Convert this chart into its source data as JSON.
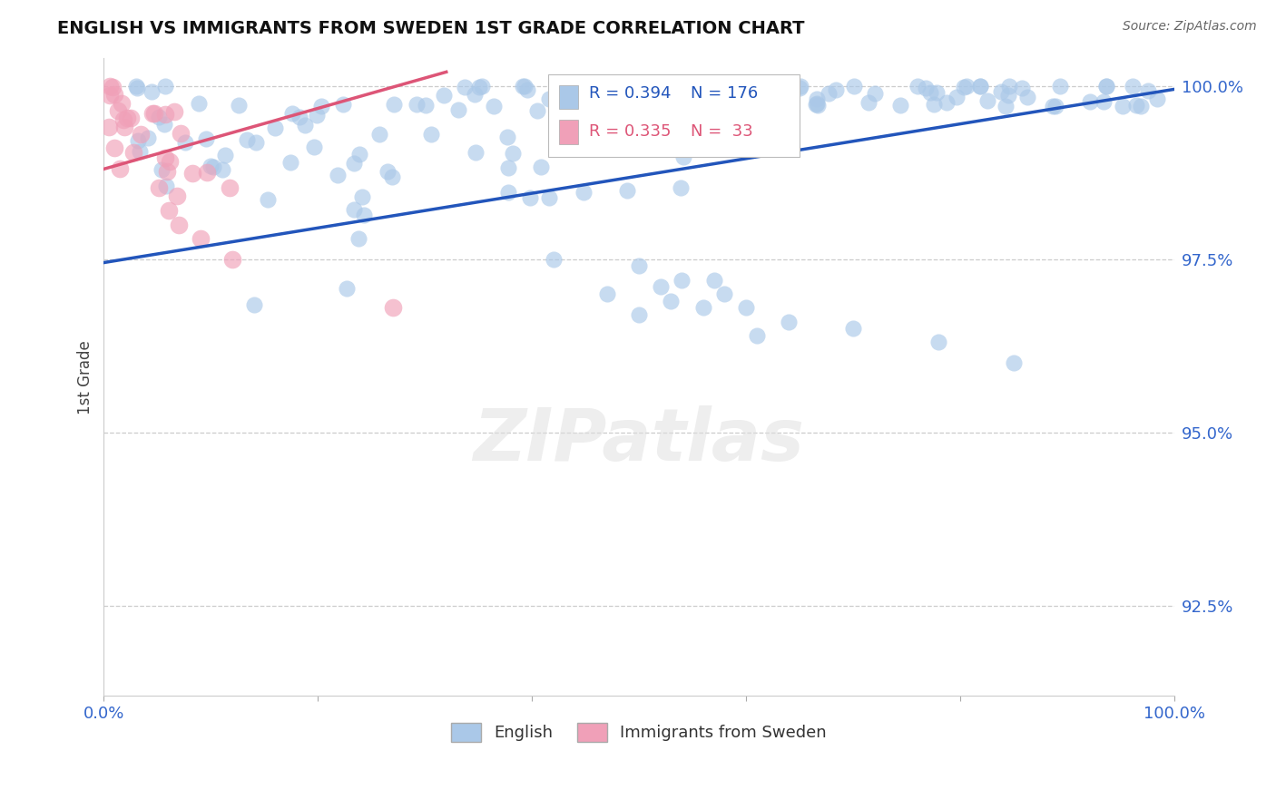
{
  "title": "ENGLISH VS IMMIGRANTS FROM SWEDEN 1ST GRADE CORRELATION CHART",
  "source_text": "Source: ZipAtlas.com",
  "ylabel": "1st Grade",
  "watermark": "ZIPatlas",
  "x_min": 0.0,
  "x_max": 1.0,
  "y_min": 0.912,
  "y_max": 1.004,
  "ytick_vals": [
    0.925,
    0.95,
    0.975,
    1.0
  ],
  "ytick_labels": [
    "92.5%",
    "95.0%",
    "97.5%",
    "100.0%"
  ],
  "xtick_vals": [
    0.0,
    0.2,
    0.4,
    0.6,
    0.8,
    1.0
  ],
  "xtick_labels": [
    "0.0%",
    "",
    "",
    "",
    "",
    "100.0%"
  ],
  "legend_R_english": "R = 0.394",
  "legend_N_english": "N = 176",
  "legend_R_sweden": "R = 0.335",
  "legend_N_sweden": "N =  33",
  "english_color": "#aac8e8",
  "sweden_color": "#f0a0b8",
  "english_line_color": "#2255bb",
  "sweden_line_color": "#dd5577",
  "title_color": "#111111",
  "axis_label_color": "#444444",
  "tick_color": "#3366cc",
  "grid_color": "#cccccc",
  "bg_color": "#ffffff",
  "english_line_x": [
    0.0,
    1.0
  ],
  "english_line_y": [
    0.9745,
    0.9995
  ],
  "sweden_line_x": [
    0.0,
    0.32
  ],
  "sweden_line_y": [
    0.988,
    1.002
  ]
}
